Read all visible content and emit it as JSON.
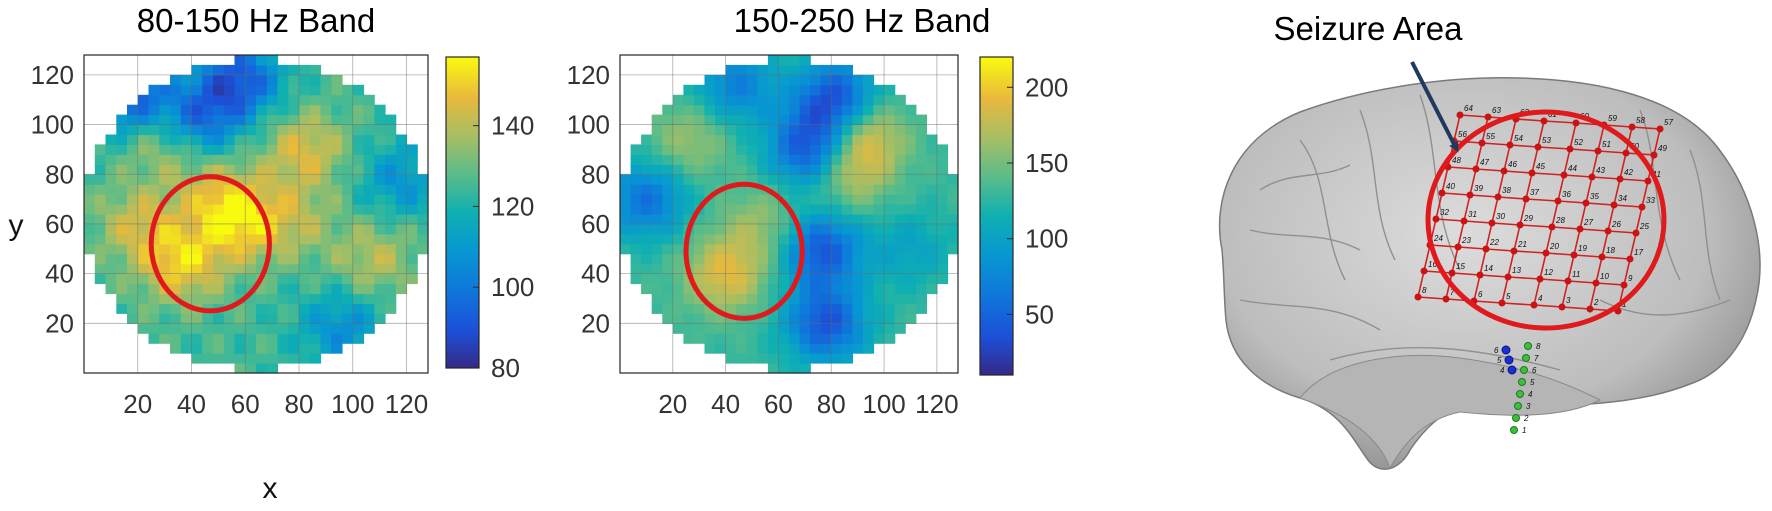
{
  "figure": {
    "annotation": "Seizure Area",
    "annotation_color": "#1f3a5f",
    "highlight_color": "#e0191c",
    "colormap": "parula"
  },
  "chart_data": [
    {
      "type": "heatmap",
      "title": "80-150 Hz Band",
      "xlabel": "x",
      "ylabel": "y",
      "xlim": [
        0,
        128
      ],
      "ylim": [
        0,
        128
      ],
      "xticks": [
        20,
        40,
        60,
        80,
        100,
        120
      ],
      "yticks": [
        20,
        40,
        60,
        80,
        100,
        120
      ],
      "xticklabels": [
        "20",
        "40",
        "60",
        "80",
        "100",
        "120"
      ],
      "yticklabels": [
        "20",
        "40",
        "60",
        "80",
        "100",
        "120"
      ],
      "grid": true,
      "mask": "circular",
      "colorbar": {
        "min": 80,
        "max": 157,
        "ticks": [
          80,
          100,
          120,
          140
        ],
        "ticklabels": [
          "80",
          "100",
          "120",
          "140"
        ]
      },
      "highlight_ellipse": {
        "cx": 47,
        "cy": 52,
        "rx": 22,
        "ry": 27
      },
      "field_base": 125,
      "field_hotspots": [
        {
          "x": 36,
          "y": 44,
          "v": 150
        },
        {
          "x": 58,
          "y": 60,
          "v": 148
        },
        {
          "x": 50,
          "y": 72,
          "v": 142
        },
        {
          "x": 82,
          "y": 90,
          "v": 145
        },
        {
          "x": 78,
          "y": 62,
          "v": 138
        },
        {
          "x": 30,
          "y": 94,
          "v": 142
        },
        {
          "x": 20,
          "y": 60,
          "v": 142
        },
        {
          "x": 108,
          "y": 46,
          "v": 140
        },
        {
          "x": 16,
          "y": 112,
          "v": 90
        },
        {
          "x": 58,
          "y": 118,
          "v": 92
        },
        {
          "x": 42,
          "y": 102,
          "v": 95
        },
        {
          "x": 118,
          "y": 78,
          "v": 108
        },
        {
          "x": 96,
          "y": 18,
          "v": 106
        }
      ]
    },
    {
      "type": "heatmap",
      "title": "150-250 Hz Band",
      "xlabel": "",
      "ylabel": "",
      "xlim": [
        0,
        128
      ],
      "ylim": [
        0,
        128
      ],
      "xticks": [
        20,
        40,
        60,
        80,
        100,
        120
      ],
      "yticks": [
        20,
        40,
        60,
        80,
        100,
        120
      ],
      "xticklabels": [
        "20",
        "40",
        "60",
        "80",
        "100",
        "120"
      ],
      "yticklabels": [
        "20",
        "40",
        "60",
        "80",
        "100",
        "120"
      ],
      "grid": true,
      "mask": "circular",
      "colorbar": {
        "min": 10,
        "max": 220,
        "ticks": [
          50,
          100,
          150,
          200
        ],
        "ticklabels": [
          "50",
          "100",
          "150",
          "200"
        ]
      },
      "highlight_ellipse": {
        "cx": 47,
        "cy": 49,
        "rx": 22,
        "ry": 27
      },
      "field_base": 130,
      "field_hotspots": [
        {
          "x": 40,
          "y": 40,
          "v": 190
        },
        {
          "x": 92,
          "y": 96,
          "v": 195
        },
        {
          "x": 86,
          "y": 80,
          "v": 175
        },
        {
          "x": 26,
          "y": 94,
          "v": 165
        },
        {
          "x": 55,
          "y": 60,
          "v": 165
        },
        {
          "x": 82,
          "y": 110,
          "v": 30
        },
        {
          "x": 72,
          "y": 90,
          "v": 35
        },
        {
          "x": 76,
          "y": 50,
          "v": 40
        },
        {
          "x": 78,
          "y": 20,
          "v": 40
        },
        {
          "x": 10,
          "y": 70,
          "v": 60
        },
        {
          "x": 44,
          "y": 116,
          "v": 70
        },
        {
          "x": 110,
          "y": 50,
          "v": 100
        }
      ]
    }
  ],
  "electrodes": {
    "grid_numbers": [
      "64",
      "63",
      "62",
      "61",
      "60",
      "59",
      "58",
      "57",
      "56",
      "55",
      "54",
      "53",
      "52",
      "51",
      "50",
      "49",
      "48",
      "47",
      "46",
      "45",
      "44",
      "43",
      "42",
      "41",
      "40",
      "39",
      "38",
      "37",
      "36",
      "35",
      "34",
      "33",
      "32",
      "31",
      "30",
      "29",
      "28",
      "27",
      "26",
      "25",
      "24",
      "23",
      "22",
      "21",
      "20",
      "19",
      "18",
      "17",
      "16",
      "15",
      "14",
      "13",
      "12",
      "11",
      "10",
      "9",
      "8",
      "7",
      "6",
      "5",
      "4",
      "3",
      "2",
      "1"
    ],
    "strip_blue_numbers": [
      "6",
      "5",
      "4"
    ],
    "strip_green_numbers": [
      "8",
      "7",
      "6",
      "5",
      "4",
      "3",
      "2",
      "1"
    ]
  }
}
